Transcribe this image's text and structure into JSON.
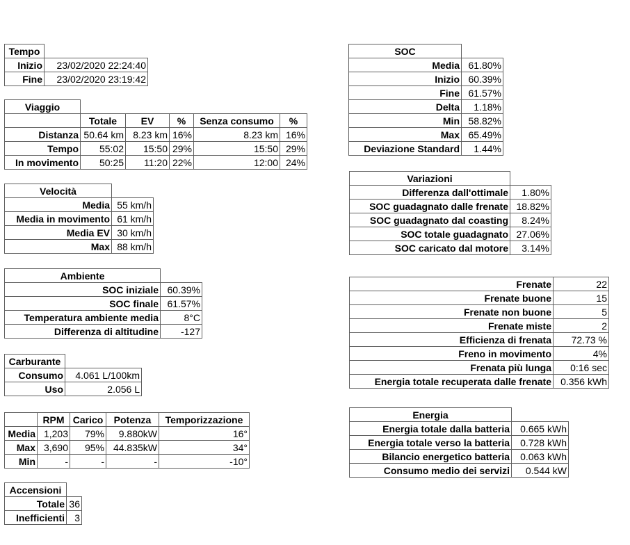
{
  "tables": {
    "tempo": {
      "title": "Tempo",
      "rows": [
        [
          "Inizio",
          "23/02/2020 22:24:40"
        ],
        [
          "Fine",
          "23/02/2020 23:19:42"
        ]
      ]
    },
    "viaggio": {
      "title": "Viaggio",
      "columns": [
        "",
        "Totale",
        "EV",
        "%",
        "Senza consumo",
        "%"
      ],
      "rows": [
        [
          "Distanza",
          "50.64 km",
          "8.23 km",
          "16%",
          "8.23 km",
          "16%"
        ],
        [
          "Tempo",
          "55:02",
          "15:50",
          "29%",
          "15:50",
          "29%"
        ],
        [
          "In movimento",
          "50:25",
          "11:20",
          "22%",
          "12:00",
          "24%"
        ]
      ]
    },
    "velocita": {
      "title": "Velocità",
      "rows": [
        [
          "Media",
          "55 km/h"
        ],
        [
          "Media in movimento",
          "61 km/h"
        ],
        [
          "Media EV",
          "30 km/h"
        ],
        [
          "Max",
          "88 km/h"
        ]
      ]
    },
    "ambiente": {
      "title": "Ambiente",
      "rows": [
        [
          "SOC iniziale",
          "60.39%"
        ],
        [
          "SOC finale",
          "61.57%"
        ],
        [
          "Temperatura ambiente media",
          "8°C"
        ],
        [
          "Differenza di altitudine",
          "-127"
        ]
      ]
    },
    "carburante": {
      "title": "Carburante",
      "rows": [
        [
          "Consumo",
          "4.061 L/100km"
        ],
        [
          "Uso",
          "2.056 L"
        ]
      ]
    },
    "motore": {
      "columns": [
        "",
        "RPM",
        "Carico",
        "Potenza",
        "Temporizzazione"
      ],
      "rows": [
        [
          "Media",
          "1,203",
          "79%",
          "9.880kW",
          "16°"
        ],
        [
          "Max",
          "3,690",
          "95%",
          "44.835kW",
          "34°"
        ],
        [
          "Min",
          "-",
          "-",
          "-",
          "-10°"
        ]
      ]
    },
    "accensioni": {
      "title": "Accensioni",
      "rows": [
        [
          "Totale",
          "36"
        ],
        [
          "Inefficienti",
          "3"
        ]
      ]
    },
    "soc": {
      "title": "SOC",
      "rows": [
        [
          "Media",
          "61.80%"
        ],
        [
          "Inizio",
          "60.39%"
        ],
        [
          "Fine",
          "61.57%"
        ],
        [
          "Delta",
          "1.18%"
        ],
        [
          "Min",
          "58.82%"
        ],
        [
          "Max",
          "65.49%"
        ],
        [
          "Deviazione Standard",
          "1.44%"
        ]
      ]
    },
    "variazioni": {
      "title": "Variazioni",
      "rows": [
        [
          "Differenza dall'ottimale",
          "1.80%"
        ],
        [
          "SOC guadagnato dalle frenate",
          "18.82%"
        ],
        [
          "SOC guadagnato dal coasting",
          "8.24%"
        ],
        [
          "SOC totale guadagnato",
          "27.06%"
        ],
        [
          "SOC caricato dal motore",
          "3.14%"
        ]
      ]
    },
    "frenate": {
      "rows": [
        [
          "Frenate",
          "22"
        ],
        [
          "Frenate buone",
          "15"
        ],
        [
          "Frenate non buone",
          "5"
        ],
        [
          "Frenate miste",
          "2"
        ],
        [
          "Efficienza di frenata",
          "72.73 %"
        ],
        [
          "Freno in movimento",
          "4%"
        ],
        [
          "Frenata più lunga",
          "0:16 sec"
        ],
        [
          "Energia totale recuperata dalle frenate",
          "0.356 kWh"
        ]
      ]
    },
    "energia": {
      "title": "Energia",
      "rows": [
        [
          "Energia totale dalla batteria",
          "0.665 kWh"
        ],
        [
          "Energia totale verso la batteria",
          "0.728 kWh"
        ],
        [
          "Bilancio energetico batteria",
          "0.063 kWh"
        ],
        [
          "Consumo medio dei servizi",
          "0.544 kW"
        ]
      ]
    }
  }
}
